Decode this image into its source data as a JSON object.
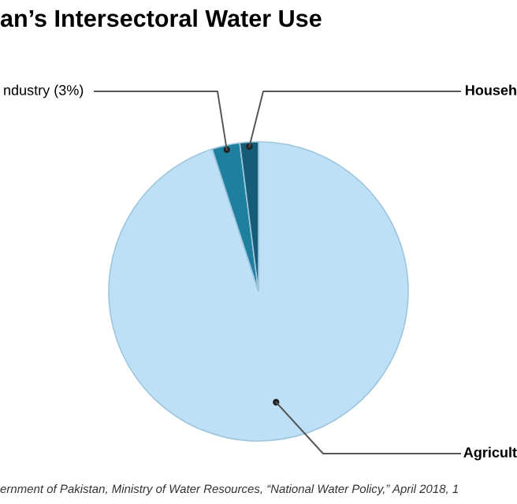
{
  "chart_data": {
    "type": "pie",
    "title": "an’s Intersectoral Water Use",
    "categories": [
      "Agricult",
      "ndustry (3%)",
      "Househ"
    ],
    "values": [
      95,
      3,
      2
    ],
    "colors": [
      "#bde0f7",
      "#1f7f9f",
      "#145c78"
    ],
    "annotations": [
      "ernment of Pakistan, Ministry of Water Resources, “National Water Policy,” April 2018, 1"
    ]
  }
}
